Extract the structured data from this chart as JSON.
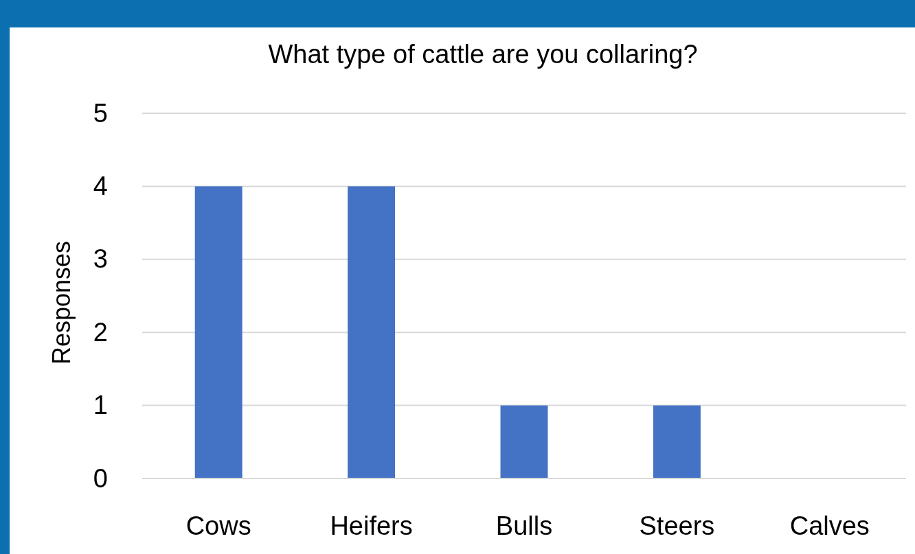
{
  "chart_data": {
    "type": "bar",
    "title": "What type of cattle are you collaring?",
    "ylabel": "Responses",
    "categories": [
      "Cows",
      "Heifers",
      "Bulls",
      "Steers",
      "Calves"
    ],
    "values": [
      4,
      4,
      1,
      1,
      0
    ],
    "color": "#4472c4",
    "ylim": [
      0,
      5
    ],
    "yticks": [
      0,
      1,
      2,
      3,
      4,
      5
    ],
    "grid": "y"
  }
}
